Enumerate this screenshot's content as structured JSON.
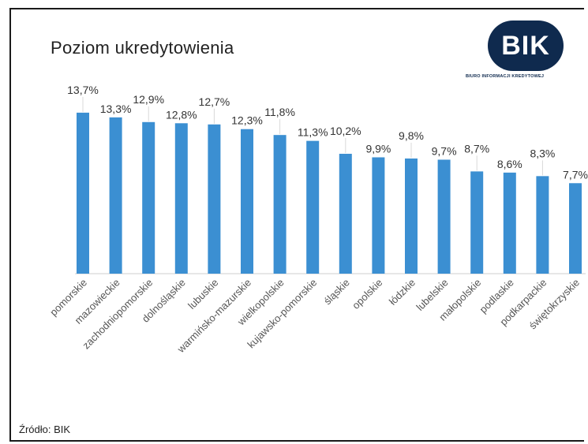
{
  "header": {
    "title": "Poziom ukredytowienia"
  },
  "logo": {
    "text": "BIK",
    "subtitle": "BIURO INFORMACJI KREDYTOWEJ"
  },
  "footer": {
    "source": "Źródło: BIK"
  },
  "colors": {
    "bar": "#3b8fd2",
    "logo": "#0f2a4e"
  },
  "chart_data": {
    "type": "bar",
    "title": "Poziom ukredytowienia",
    "xlabel": "",
    "ylabel": "",
    "grid": false,
    "ylim": [
      0,
      14
    ],
    "categories": [
      "pomorskie",
      "mazowieckie",
      "zachodniopomorskie",
      "dolnośląskie",
      "lubuskie",
      "warmińsko-mazurskie",
      "wielkopolskie",
      "kujawsko-pomorskie",
      "śląskie",
      "opolskie",
      "łódzkie",
      "lubelskie",
      "małopolskie",
      "podlaskie",
      "podkarpackie",
      "świętokrzyskie"
    ],
    "values": [
      13.7,
      13.3,
      12.9,
      12.8,
      12.7,
      12.3,
      11.8,
      11.3,
      10.2,
      9.9,
      9.8,
      9.7,
      8.7,
      8.6,
      8.3,
      7.7
    ],
    "labels": [
      "13,7%",
      "13,3%",
      "12,9%",
      "12,8%",
      "12,7%",
      "12,3%",
      "11,8%",
      "11,3%",
      "10,2%",
      "9,9%",
      "9,8%",
      "9,7%",
      "8,7%",
      "8,6%",
      "8,3%",
      "7,7%"
    ]
  }
}
